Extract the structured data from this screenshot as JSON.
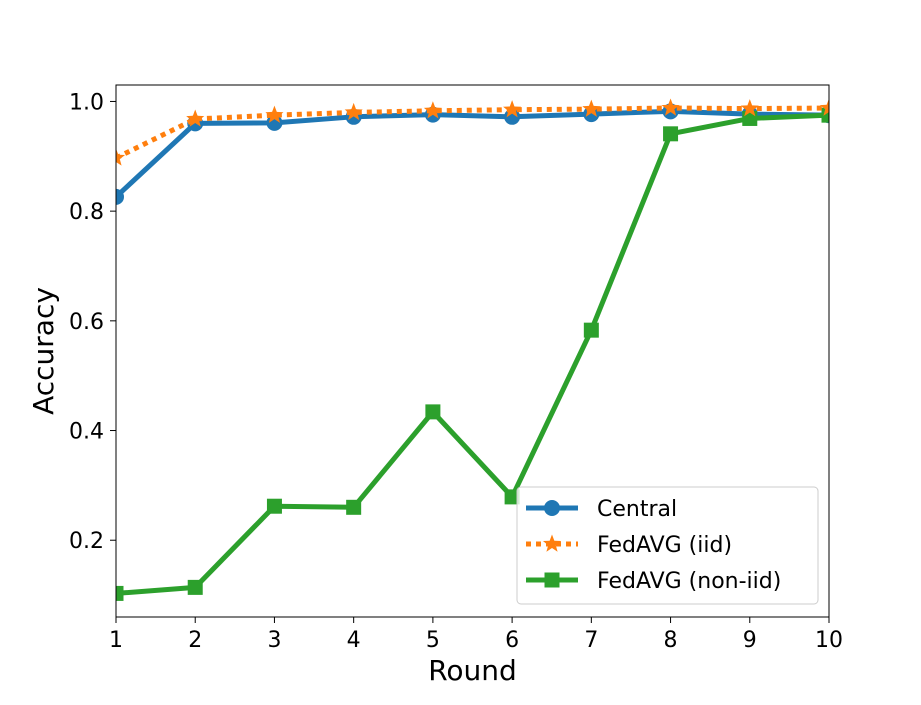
{
  "chart_data": {
    "type": "line",
    "xlabel": "Round",
    "ylabel": "Accuracy",
    "x": [
      1,
      2,
      3,
      4,
      5,
      6,
      7,
      8,
      9,
      10
    ],
    "xlim": [
      1,
      10
    ],
    "ylim": [
      0.06,
      1.03
    ],
    "x_ticks": [
      "1",
      "2",
      "3",
      "4",
      "5",
      "6",
      "7",
      "8",
      "9",
      "10"
    ],
    "y_ticks": [
      {
        "value": 0.2,
        "label": "0.2"
      },
      {
        "value": 0.4,
        "label": "0.4"
      },
      {
        "value": 0.6,
        "label": "0.6"
      },
      {
        "value": 0.8,
        "label": "0.8"
      },
      {
        "value": 1.0,
        "label": "1.0"
      }
    ],
    "grid": false,
    "legend_position": "bottom-right",
    "series": [
      {
        "name": "Central",
        "color": "#1f77b4",
        "marker": "circle",
        "linestyle": "solid",
        "values": [
          0.826,
          0.96,
          0.961,
          0.972,
          0.976,
          0.972,
          0.977,
          0.982,
          0.977,
          0.975
        ]
      },
      {
        "name": "FedAVG (iid)",
        "color": "#ff7f0e",
        "marker": "star",
        "linestyle": "dotted",
        "values": [
          0.897,
          0.968,
          0.975,
          0.98,
          0.983,
          0.985,
          0.986,
          0.988,
          0.987,
          0.988
        ]
      },
      {
        "name": "FedAVG (non-iid)",
        "color": "#2ca02c",
        "marker": "square",
        "linestyle": "solid",
        "values": [
          0.103,
          0.114,
          0.262,
          0.26,
          0.434,
          0.279,
          0.583,
          0.941,
          0.969,
          0.975
        ]
      }
    ]
  }
}
